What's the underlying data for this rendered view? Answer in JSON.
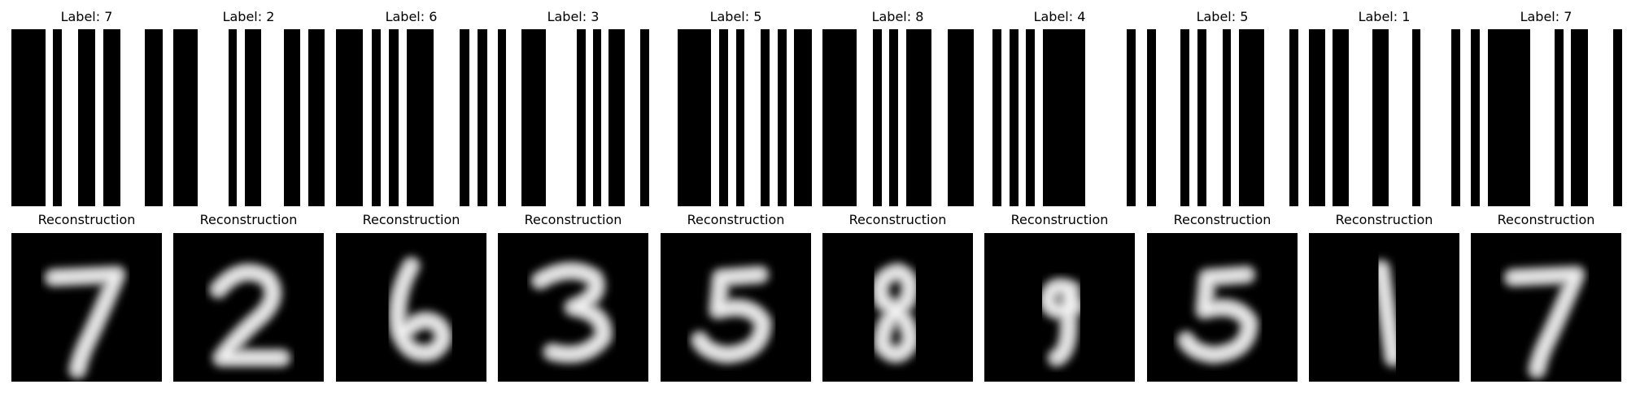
{
  "figure": {
    "label_prefix": "Label: ",
    "reconstruction_title": "Reconstruction",
    "panels": [
      {
        "label": "7",
        "digit": "7",
        "code_bits": [
          1,
          1,
          1,
          1,
          0,
          1,
          0,
          0,
          1,
          1,
          0,
          1,
          1,
          0,
          0,
          0,
          1,
          1
        ]
      },
      {
        "label": "2",
        "digit": "2",
        "code_bits": [
          1,
          1,
          1,
          0,
          0,
          0,
          0,
          1,
          0,
          1,
          1,
          0,
          0,
          0,
          1,
          1,
          0,
          1,
          1
        ]
      },
      {
        "label": "6",
        "digit": "6",
        "code_bits": [
          1,
          1,
          1,
          0,
          1,
          0,
          1,
          0,
          1,
          1,
          1,
          0,
          0,
          0,
          1,
          0,
          1
        ]
      },
      {
        "label": "3",
        "digit": "3",
        "code_bits": [
          1,
          0,
          0,
          1,
          1,
          1,
          0,
          0,
          0,
          0,
          1,
          0,
          1,
          0,
          1,
          1,
          0,
          0,
          1
        ]
      },
      {
        "label": "5",
        "digit": "5",
        "code_bits": [
          0,
          0,
          1,
          1,
          1,
          1,
          0,
          1,
          0,
          1,
          0,
          0,
          1,
          0,
          1,
          0,
          1,
          1
        ]
      },
      {
        "label": "8",
        "digit": "8",
        "code_bits": [
          1,
          1,
          1,
          1,
          0,
          0,
          1,
          0,
          1,
          0,
          1,
          1,
          1,
          0,
          0,
          1,
          1,
          1
        ]
      },
      {
        "label": "4",
        "digit": "9",
        "code_bits": [
          0,
          1,
          0,
          1,
          0,
          1,
          0,
          1,
          1,
          1,
          1,
          1,
          0,
          0,
          0,
          0,
          0,
          1
        ]
      },
      {
        "label": "5",
        "digit": "5",
        "code_bits": [
          1,
          0,
          0,
          0,
          1,
          0,
          1,
          0,
          0,
          1,
          0,
          1,
          1,
          1,
          0,
          0,
          0,
          1
        ]
      },
      {
        "label": "1",
        "digit": "1",
        "code_bits": [
          1,
          1,
          0,
          1,
          1,
          0,
          0,
          0,
          1,
          1,
          0,
          0,
          0,
          1,
          0,
          0,
          0,
          0,
          1
        ]
      },
      {
        "label": "7",
        "digit": "7",
        "code_bits": [
          1,
          0,
          1,
          1,
          1,
          1,
          1,
          0,
          0,
          0,
          1,
          0,
          1,
          1,
          0,
          0,
          0,
          1
        ]
      }
    ]
  }
}
